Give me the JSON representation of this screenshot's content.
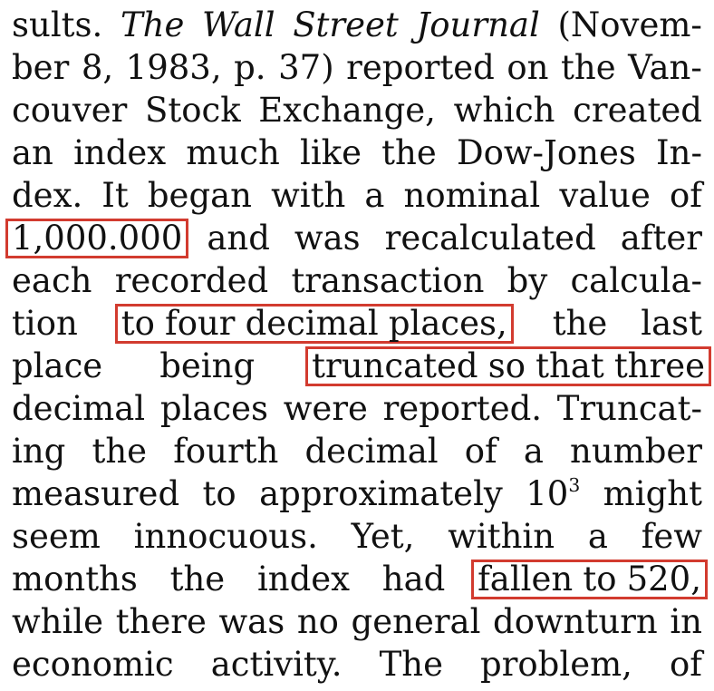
{
  "text_lines": [
    [
      "sults.",
      "The",
      "Wall",
      "Street",
      "Journal",
      "(Novem-"
    ],
    [
      "ber",
      "8,",
      "1983,",
      "p.",
      "37)",
      "reported",
      "on",
      "the",
      "Van-"
    ],
    [
      "couver",
      "Stock",
      "Exchange,",
      "which",
      "created"
    ],
    [
      "an",
      "index",
      "much",
      "like",
      "the",
      "Dow-Jones",
      "In-"
    ],
    [
      "dex.",
      "It",
      "began",
      "with",
      "a",
      "nominal",
      "value",
      "of"
    ],
    [
      "1,000.000",
      "and",
      "was",
      "recalculated",
      "after"
    ],
    [
      "each",
      "recorded",
      "transaction",
      "by",
      "calcula-"
    ],
    [
      "tion",
      "to four decimal places,",
      "the",
      "last"
    ],
    [
      "place",
      "being",
      "truncated so that three"
    ],
    [
      "decimal",
      "places",
      "were",
      "reported.",
      "Truncat-"
    ],
    [
      "ing",
      "the",
      "fourth",
      "decimal",
      "of",
      "a",
      "number"
    ],
    [
      "measured",
      "to",
      "approximately",
      "10",
      "3",
      "might"
    ],
    [
      "seem",
      "innocuous.",
      "Yet,",
      "within",
      "a",
      "few"
    ],
    [
      "months",
      "the",
      "index",
      "had",
      "fallen to 520,"
    ],
    [
      "while",
      "there",
      "was",
      "no",
      "general",
      "downturn",
      "in"
    ],
    [
      "economic",
      "activity.",
      "The",
      "problem,",
      "of"
    ]
  ],
  "highlights": {
    "initial_value": "1,000.000",
    "precision": [
      "to",
      "four",
      "decimal",
      "places,"
    ],
    "truncation": [
      "truncated",
      "so",
      "that",
      "three"
    ],
    "fall": [
      "fallen",
      "to",
      "520,"
    ]
  },
  "highlight_color": "#d23b2f",
  "text_color": "#111111",
  "background_color": "#ffffff"
}
